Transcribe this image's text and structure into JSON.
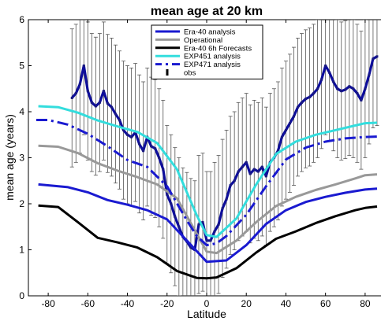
{
  "chart_data": {
    "type": "line",
    "title": "mean age at 20 km",
    "xlabel": "Latitude",
    "ylabel": "mean age (years)",
    "xlim": [
      -90,
      90
    ],
    "ylim": [
      0,
      6
    ],
    "xticks": [
      -80,
      -60,
      -40,
      -20,
      0,
      20,
      40,
      60,
      80
    ],
    "yticks": [
      0,
      1,
      2,
      3,
      4,
      5,
      6
    ],
    "grid": false,
    "legend_position": "top-center",
    "series": [
      {
        "name": "Era-40 analysis",
        "color": "#1a1ad0",
        "style": "solid",
        "x": [
          -85,
          -70,
          -60,
          -50,
          -40,
          -30,
          -20,
          -10,
          0,
          10,
          20,
          30,
          40,
          50,
          60,
          70,
          80,
          86
        ],
        "y": [
          2.42,
          2.36,
          2.25,
          2.08,
          1.98,
          1.86,
          1.66,
          1.2,
          0.74,
          0.77,
          1.1,
          1.56,
          1.86,
          2.04,
          2.15,
          2.24,
          2.31,
          2.33
        ]
      },
      {
        "name": "Operational",
        "color": "#999999",
        "style": "solid",
        "x": [
          -85,
          -75,
          -65,
          -55,
          -45,
          -35,
          -25,
          -15,
          -5,
          0,
          5,
          15,
          25,
          35,
          45,
          55,
          65,
          75,
          80,
          86
        ],
        "y": [
          3.26,
          3.24,
          3.1,
          2.88,
          2.72,
          2.58,
          2.42,
          2.12,
          1.35,
          0.96,
          0.93,
          1.2,
          1.6,
          1.95,
          2.15,
          2.3,
          2.42,
          2.55,
          2.62,
          2.64
        ]
      },
      {
        "name": "Era-40 6h Forecasts",
        "color": "#000000",
        "style": "solid",
        "x": [
          -85,
          -75,
          -65,
          -55,
          -45,
          -35,
          -25,
          -15,
          -5,
          0,
          5,
          15,
          25,
          35,
          45,
          55,
          65,
          75,
          80,
          86
        ],
        "y": [
          1.96,
          1.93,
          1.6,
          1.26,
          1.16,
          1.05,
          0.84,
          0.54,
          0.39,
          0.38,
          0.4,
          0.6,
          0.94,
          1.24,
          1.4,
          1.58,
          1.73,
          1.86,
          1.91,
          1.94
        ]
      },
      {
        "name": "EXP451 analysis",
        "color": "#33dddd",
        "style": "solid",
        "x": [
          -85,
          -75,
          -65,
          -55,
          -45,
          -35,
          -25,
          -15,
          -5,
          0,
          5,
          15,
          25,
          35,
          45,
          55,
          65,
          75,
          80,
          86
        ],
        "y": [
          4.12,
          4.1,
          3.98,
          3.81,
          3.68,
          3.56,
          3.32,
          2.75,
          1.75,
          1.32,
          1.28,
          1.68,
          2.42,
          3.08,
          3.35,
          3.5,
          3.6,
          3.7,
          3.75,
          3.76
        ]
      },
      {
        "name": "EXP471 analysis",
        "color": "#1a1ad0",
        "style": "dashdot",
        "x": [
          -86,
          -80,
          -70,
          -60,
          -50,
          -40,
          -30,
          -20,
          -10,
          -5,
          0,
          5,
          10,
          20,
          30,
          40,
          50,
          60,
          70,
          80,
          86
        ],
        "y": [
          3.82,
          3.82,
          3.72,
          3.52,
          3.25,
          2.95,
          2.8,
          2.38,
          1.64,
          1.3,
          1.1,
          1.14,
          1.3,
          1.76,
          2.38,
          2.96,
          3.22,
          3.35,
          3.42,
          3.45,
          3.46
        ]
      }
    ],
    "obs": {
      "name": "obs",
      "color": "#1a1a80",
      "x": [
        -68,
        -66,
        -64,
        -62,
        -60,
        -58,
        -56,
        -54,
        -52,
        -50,
        -48,
        -46,
        -44,
        -42,
        -40,
        -38,
        -36,
        -34,
        -32,
        -30,
        -28,
        -26,
        -24,
        -22,
        -20,
        -18,
        -16,
        -14,
        -12,
        -10,
        -8,
        -6,
        -4,
        -2,
        0,
        2,
        4,
        6,
        8,
        10,
        12,
        14,
        16,
        18,
        20,
        22,
        24,
        26,
        28,
        30,
        32,
        34,
        36,
        38,
        40,
        42,
        44,
        46,
        48,
        50,
        52,
        54,
        56,
        58,
        60,
        62,
        64,
        66,
        68,
        70,
        72,
        74,
        76,
        78,
        80,
        82,
        84,
        86
      ],
      "y": [
        4.3,
        4.4,
        4.6,
        5.0,
        4.45,
        4.2,
        4.12,
        4.2,
        4.45,
        4.18,
        4.1,
        3.95,
        3.82,
        3.6,
        3.5,
        3.45,
        3.55,
        3.3,
        3.15,
        3.45,
        3.25,
        3.2,
        3.0,
        2.75,
        2.2,
        2.0,
        1.72,
        1.5,
        1.28,
        1.18,
        1.05,
        1.0,
        1.55,
        1.6,
        1.2,
        1.2,
        1.4,
        1.55,
        1.9,
        2.1,
        2.4,
        2.5,
        2.7,
        2.8,
        2.9,
        2.65,
        2.75,
        2.7,
        2.8,
        2.6,
        2.9,
        3.0,
        3.15,
        3.45,
        3.6,
        3.75,
        3.9,
        4.1,
        4.2,
        4.28,
        4.32,
        4.4,
        4.5,
        4.7,
        5.0,
        4.85,
        4.65,
        4.5,
        4.45,
        4.48,
        4.55,
        4.5,
        4.4,
        4.25,
        4.5,
        4.8,
        5.15,
        5.2
      ],
      "error": 1.5
    }
  }
}
